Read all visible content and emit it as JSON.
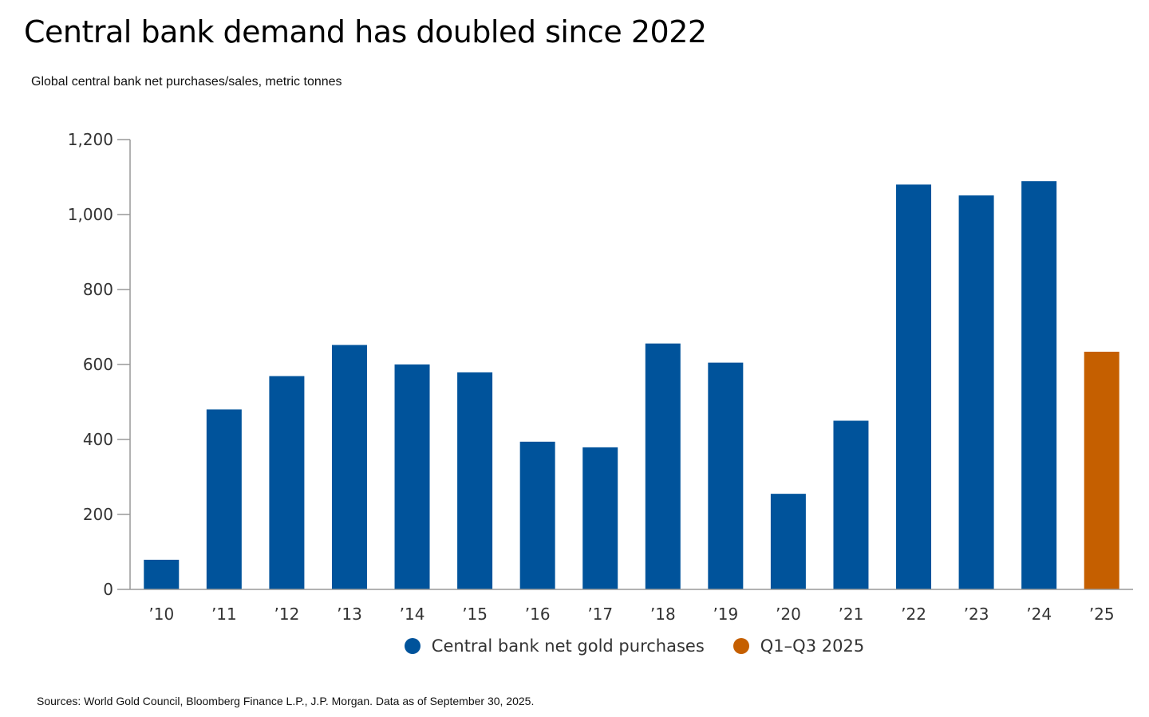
{
  "title": "Central bank demand has doubled since 2022",
  "subtitle": "Global central bank net purchases/sales, metric tonnes",
  "source": "Sources: World Gold Council, Bloomberg Finance L.P., J.P. Morgan. Data as of September 30, 2025.",
  "colors": {
    "primary": "#00539b",
    "highlight": "#c55f00",
    "axis": "#999999"
  },
  "legend": [
    {
      "label": "Central bank net gold purchases",
      "color": "#00539b"
    },
    {
      "label": "Q1–Q3 2025",
      "color": "#c55f00"
    }
  ],
  "chart_data": {
    "type": "bar",
    "title": "Central bank demand has doubled since 2022",
    "subtitle": "Global central bank net purchases/sales, metric tonnes",
    "categories": [
      "’10",
      "’11",
      "’12",
      "’13",
      "’14",
      "’15",
      "’16",
      "’17",
      "’18",
      "’19",
      "’20",
      "’21",
      "’22",
      "’23",
      "’24",
      "’25"
    ],
    "values": [
      79,
      480,
      569,
      652,
      600,
      579,
      394,
      379,
      656,
      605,
      255,
      450,
      1080,
      1051,
      1089,
      634
    ],
    "highlight_index": 15,
    "yticks": [
      0,
      200,
      400,
      600,
      800,
      1000,
      1200
    ],
    "ytick_labels": [
      "0",
      "200",
      "400",
      "600",
      "800",
      "1,000",
      "1,200"
    ],
    "ylim": [
      0,
      1200
    ],
    "grid": false,
    "legend_position": "bottom"
  }
}
